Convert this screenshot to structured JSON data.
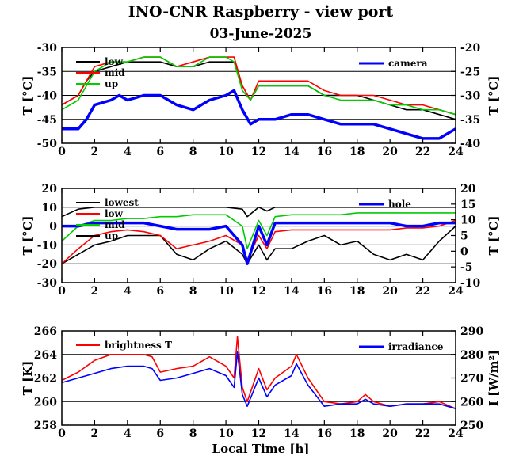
{
  "title": "INO-CNR Raspberry - view port",
  "subtitle": "03-June-2025",
  "xlabel_bottom": "Local Time [h]",
  "chart_data": [
    {
      "type": "line",
      "x_ticks": [
        "0",
        "2",
        "4",
        "6",
        "8",
        "10",
        "12",
        "14",
        "16",
        "18",
        "20",
        "22",
        "24"
      ],
      "xlim": [
        0,
        24
      ],
      "ylim_left": [
        -50,
        -30
      ],
      "ylim_right": [
        -40,
        -20
      ],
      "yticks_left": [
        "-30",
        "-35",
        "-40",
        "-45",
        "-50"
      ],
      "yticks_right": [
        "-20",
        "-25",
        "-30",
        "-35",
        "-40"
      ],
      "ylabel_left": "T [°C]",
      "ylabel_right": "T [°C]",
      "series": [
        {
          "name": "low",
          "axis": "left",
          "color": "#000000",
          "x": [
            0,
            1,
            1.5,
            2,
            3,
            4,
            5,
            6,
            7,
            8,
            9,
            10,
            10.5,
            11,
            11.5,
            12,
            13,
            14,
            15,
            16,
            17,
            18,
            19,
            20,
            21,
            22,
            23,
            24
          ],
          "y": [
            -42,
            -40,
            -37,
            -35,
            -34,
            -33,
            -33,
            -33,
            -34,
            -34,
            -33,
            -33,
            -33,
            -38,
            -41,
            -38,
            -38,
            -38,
            -38,
            -40,
            -40,
            -40,
            -41,
            -42,
            -43,
            -43,
            -44,
            -45
          ]
        },
        {
          "name": "mid",
          "axis": "left",
          "color": "#ff0000",
          "x": [
            0,
            1,
            1.5,
            2,
            3,
            4,
            5,
            6,
            7,
            8,
            9,
            10,
            10.5,
            11,
            11.5,
            12,
            13,
            14,
            15,
            16,
            17,
            18,
            19,
            20,
            21,
            22,
            23,
            24
          ],
          "y": [
            -42,
            -40,
            -37,
            -34,
            -33,
            -33,
            -32,
            -32,
            -34,
            -33,
            -32,
            -32,
            -32,
            -38,
            -41,
            -37,
            -37,
            -37,
            -37,
            -39,
            -40,
            -40,
            -40,
            -41,
            -42,
            -42,
            -43,
            -44
          ]
        },
        {
          "name": "up",
          "axis": "left",
          "color": "#00cc00",
          "x": [
            0,
            1,
            1.5,
            2,
            3,
            4,
            5,
            6,
            7,
            8,
            9,
            10,
            10.5,
            11,
            11.5,
            12,
            13,
            14,
            15,
            16,
            17,
            18,
            19,
            20,
            21,
            22,
            23,
            24
          ],
          "y": [
            -43,
            -41,
            -38,
            -35,
            -33,
            -33,
            -32,
            -32,
            -34,
            -34,
            -32,
            -32,
            -33,
            -39,
            -41,
            -38,
            -38,
            -38,
            -38,
            -40,
            -41,
            -41,
            -41,
            -42,
            -42,
            -43,
            -43,
            -44
          ]
        },
        {
          "name": "camera",
          "axis": "right",
          "color": "#0000ff",
          "x": [
            0,
            1,
            1.5,
            2,
            3,
            3.5,
            4,
            5,
            6,
            7,
            8,
            9,
            10,
            10.5,
            11,
            11.5,
            12,
            13,
            14,
            15,
            16,
            17,
            18,
            19,
            20,
            21,
            22,
            23,
            24
          ],
          "y": [
            -37,
            -37,
            -35,
            -32,
            -31,
            -30,
            -31,
            -30,
            -30,
            -32,
            -33,
            -31,
            -30,
            -29,
            -33,
            -36,
            -35,
            -35,
            -34,
            -34,
            -35,
            -36,
            -36,
            -36,
            -37,
            -38,
            -39,
            -39,
            -37
          ]
        }
      ]
    },
    {
      "type": "line",
      "x_ticks": [
        "0",
        "2",
        "4",
        "6",
        "8",
        "10",
        "12",
        "14",
        "16",
        "18",
        "20",
        "22",
        "24"
      ],
      "xlim": [
        0,
        24
      ],
      "ylim_left": [
        -30,
        20
      ],
      "ylim_right": [
        -10,
        20
      ],
      "yticks_left": [
        "20",
        "10",
        "0",
        "-10",
        "-20",
        "-30"
      ],
      "yticks_right": [
        "20",
        "15",
        "10",
        "5",
        "0",
        "-5",
        "-10"
      ],
      "ylabel_left": "T [°C]",
      "ylabel_right": "T [°C]",
      "series": [
        {
          "name": "lowest",
          "axis": "left",
          "color": "#000000",
          "x": [
            0,
            1,
            2,
            3,
            4,
            5,
            6,
            7,
            8,
            9,
            10,
            11,
            11.3,
            12,
            12.5,
            13,
            14,
            15,
            16,
            17,
            18,
            19,
            20,
            21,
            22,
            23,
            24
          ],
          "y": [
            -20,
            -15,
            -10,
            -8,
            -5,
            -5,
            -5,
            -15,
            -18,
            -12,
            -8,
            -15,
            -20,
            -10,
            -18,
            -12,
            -12,
            -8,
            -5,
            -10,
            -8,
            -15,
            -18,
            -15,
            -18,
            -8,
            0
          ]
        },
        {
          "name": "low",
          "axis": "left",
          "color": "#ff0000",
          "x": [
            0,
            1,
            2,
            3,
            4,
            5,
            6,
            7,
            8,
            9,
            10,
            11,
            11.3,
            12,
            12.5,
            13,
            14,
            15,
            16,
            17,
            18,
            19,
            20,
            21,
            22,
            23,
            24
          ],
          "y": [
            -20,
            -12,
            -5,
            -3,
            -2,
            -3,
            -5,
            -12,
            -10,
            -8,
            -5,
            -10,
            -18,
            -5,
            -12,
            -3,
            -2,
            -2,
            -2,
            -2,
            -2,
            -2,
            -2,
            -1,
            -1,
            0,
            3
          ]
        },
        {
          "name": "mid",
          "axis": "left",
          "color": "#00cc00",
          "x": [
            0,
            1,
            2,
            3,
            4,
            5,
            6,
            7,
            8,
            9,
            10,
            11,
            11.3,
            12,
            12.5,
            13,
            14,
            15,
            16,
            17,
            18,
            19,
            20,
            21,
            22,
            23,
            24
          ],
          "y": [
            -8,
            0,
            3,
            3,
            4,
            4,
            5,
            5,
            6,
            6,
            6,
            0,
            -12,
            3,
            -5,
            5,
            6,
            6,
            6,
            6,
            7,
            7,
            7,
            7,
            7,
            7,
            7
          ]
        },
        {
          "name": "up",
          "axis": "left",
          "color": "#000000",
          "x": [
            0,
            1,
            2,
            3,
            4,
            5,
            6,
            7,
            8,
            9,
            10,
            11,
            11.3,
            12,
            12.5,
            13,
            14,
            15,
            16,
            17,
            18,
            19,
            20,
            21,
            22,
            23,
            24
          ],
          "y": [
            5,
            9,
            10,
            10,
            10,
            10,
            10,
            10,
            10,
            10,
            10,
            9,
            5,
            10,
            8,
            10,
            10,
            10,
            10,
            10,
            10,
            10,
            10,
            10,
            10,
            10,
            10
          ]
        },
        {
          "name": "hole",
          "axis": "right",
          "color": "#0000ff",
          "x": [
            0,
            1,
            2,
            3,
            4,
            5,
            6,
            7,
            8,
            9,
            10,
            11,
            11.3,
            12,
            12.5,
            13,
            14,
            15,
            16,
            17,
            18,
            19,
            20,
            21,
            22,
            23,
            24
          ],
          "y": [
            8,
            8,
            9,
            9,
            9,
            9,
            8,
            7,
            7,
            7,
            8,
            2,
            -4,
            8,
            2,
            9,
            9,
            9,
            9,
            9,
            9,
            9,
            9,
            8,
            8,
            9,
            9
          ]
        }
      ]
    },
    {
      "type": "line",
      "x_ticks": [
        "0",
        "2",
        "4",
        "6",
        "8",
        "10",
        "12",
        "14",
        "16",
        "18",
        "20",
        "22",
        "24"
      ],
      "xlim": [
        0,
        24
      ],
      "ylim_left": [
        258,
        266
      ],
      "ylim_right": [
        250,
        290
      ],
      "yticks_left": [
        "266",
        "264",
        "262",
        "260",
        "258"
      ],
      "yticks_right": [
        "290",
        "280",
        "270",
        "260",
        "250"
      ],
      "ylabel_left": "T [K]",
      "ylabel_right": "I [W/m²]",
      "series": [
        {
          "name": "brightness T",
          "axis": "left",
          "color": "#ff0000",
          "x": [
            0,
            1,
            2,
            3,
            4,
            5,
            5.5,
            6,
            7,
            8,
            9,
            10,
            10.5,
            10.7,
            11,
            11.3,
            12,
            12.5,
            13,
            14,
            14.3,
            15,
            16,
            17,
            18,
            18.5,
            19,
            20,
            21,
            22,
            23,
            24
          ],
          "y": [
            261.8,
            262.5,
            263.5,
            264,
            264,
            264,
            263.8,
            262.5,
            262.8,
            263,
            263.8,
            263,
            262,
            265.5,
            261.2,
            260,
            262.8,
            261,
            262,
            263,
            264,
            262,
            260,
            259.8,
            260,
            260.6,
            260,
            259.6,
            259.8,
            259.8,
            260,
            259.4
          ]
        },
        {
          "name": "irradiance",
          "axis": "right",
          "color": "#0000ff",
          "x": [
            0,
            1,
            2,
            3,
            4,
            5,
            5.5,
            6,
            7,
            8,
            9,
            10,
            10.5,
            10.7,
            11,
            11.3,
            12,
            12.5,
            13,
            14,
            14.3,
            15,
            16,
            17,
            18,
            18.5,
            19,
            20,
            21,
            22,
            23,
            24
          ],
          "y": [
            268,
            270,
            272,
            274,
            275,
            275,
            274,
            269,
            270,
            272,
            274,
            271,
            266,
            281,
            263,
            258,
            270,
            262,
            267,
            271,
            276,
            267,
            258,
            259,
            259,
            261,
            259,
            258,
            259,
            259,
            259,
            257
          ]
        }
      ]
    }
  ]
}
